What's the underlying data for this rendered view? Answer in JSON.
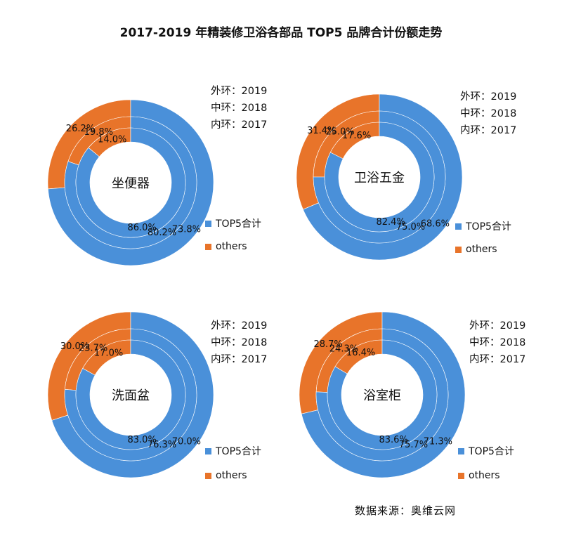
{
  "title": "2017-2019 年精装修卫浴各部品 TOP5 品牌合计份额走势",
  "source": "数据来源：奥维云网",
  "ring_notes": [
    "外环：2019",
    "中环：2018",
    "内环：2017"
  ],
  "legend": [
    {
      "label": "TOP5合计",
      "color": "#4a90d9"
    },
    {
      "label": "others",
      "color": "#e8742a"
    }
  ],
  "colors": {
    "top5": "#4a90d9",
    "others": "#e8742a"
  },
  "chart_data": [
    {
      "type": "pie",
      "subtype": "concentric-donut",
      "center_label": "坐便器",
      "rings": [
        {
          "year": "2019",
          "ring": "outer",
          "top5": 73.8,
          "others": 26.2
        },
        {
          "year": "2018",
          "ring": "middle",
          "top5": 80.2,
          "others": 19.8
        },
        {
          "year": "2017",
          "ring": "inner",
          "top5": 86.0,
          "others": 14.0
        }
      ]
    },
    {
      "type": "pie",
      "subtype": "concentric-donut",
      "center_label": "卫浴五金",
      "rings": [
        {
          "year": "2019",
          "ring": "outer",
          "top5": 68.6,
          "others": 31.4
        },
        {
          "year": "2018",
          "ring": "middle",
          "top5": 75.0,
          "others": 25.0
        },
        {
          "year": "2017",
          "ring": "inner",
          "top5": 82.4,
          "others": 17.6
        }
      ]
    },
    {
      "type": "pie",
      "subtype": "concentric-donut",
      "center_label": "洗面盆",
      "rings": [
        {
          "year": "2019",
          "ring": "outer",
          "top5": 70.0,
          "others": 30.0
        },
        {
          "year": "2018",
          "ring": "middle",
          "top5": 76.3,
          "others": 23.7
        },
        {
          "year": "2017",
          "ring": "inner",
          "top5": 83.0,
          "others": 17.0
        }
      ]
    },
    {
      "type": "pie",
      "subtype": "concentric-donut",
      "center_label": "浴室柜",
      "rings": [
        {
          "year": "2019",
          "ring": "outer",
          "top5": 71.3,
          "others": 28.7
        },
        {
          "year": "2018",
          "ring": "middle",
          "top5": 75.7,
          "others": 24.3
        },
        {
          "year": "2017",
          "ring": "inner",
          "top5": 83.6,
          "others": 16.4
        }
      ]
    }
  ]
}
